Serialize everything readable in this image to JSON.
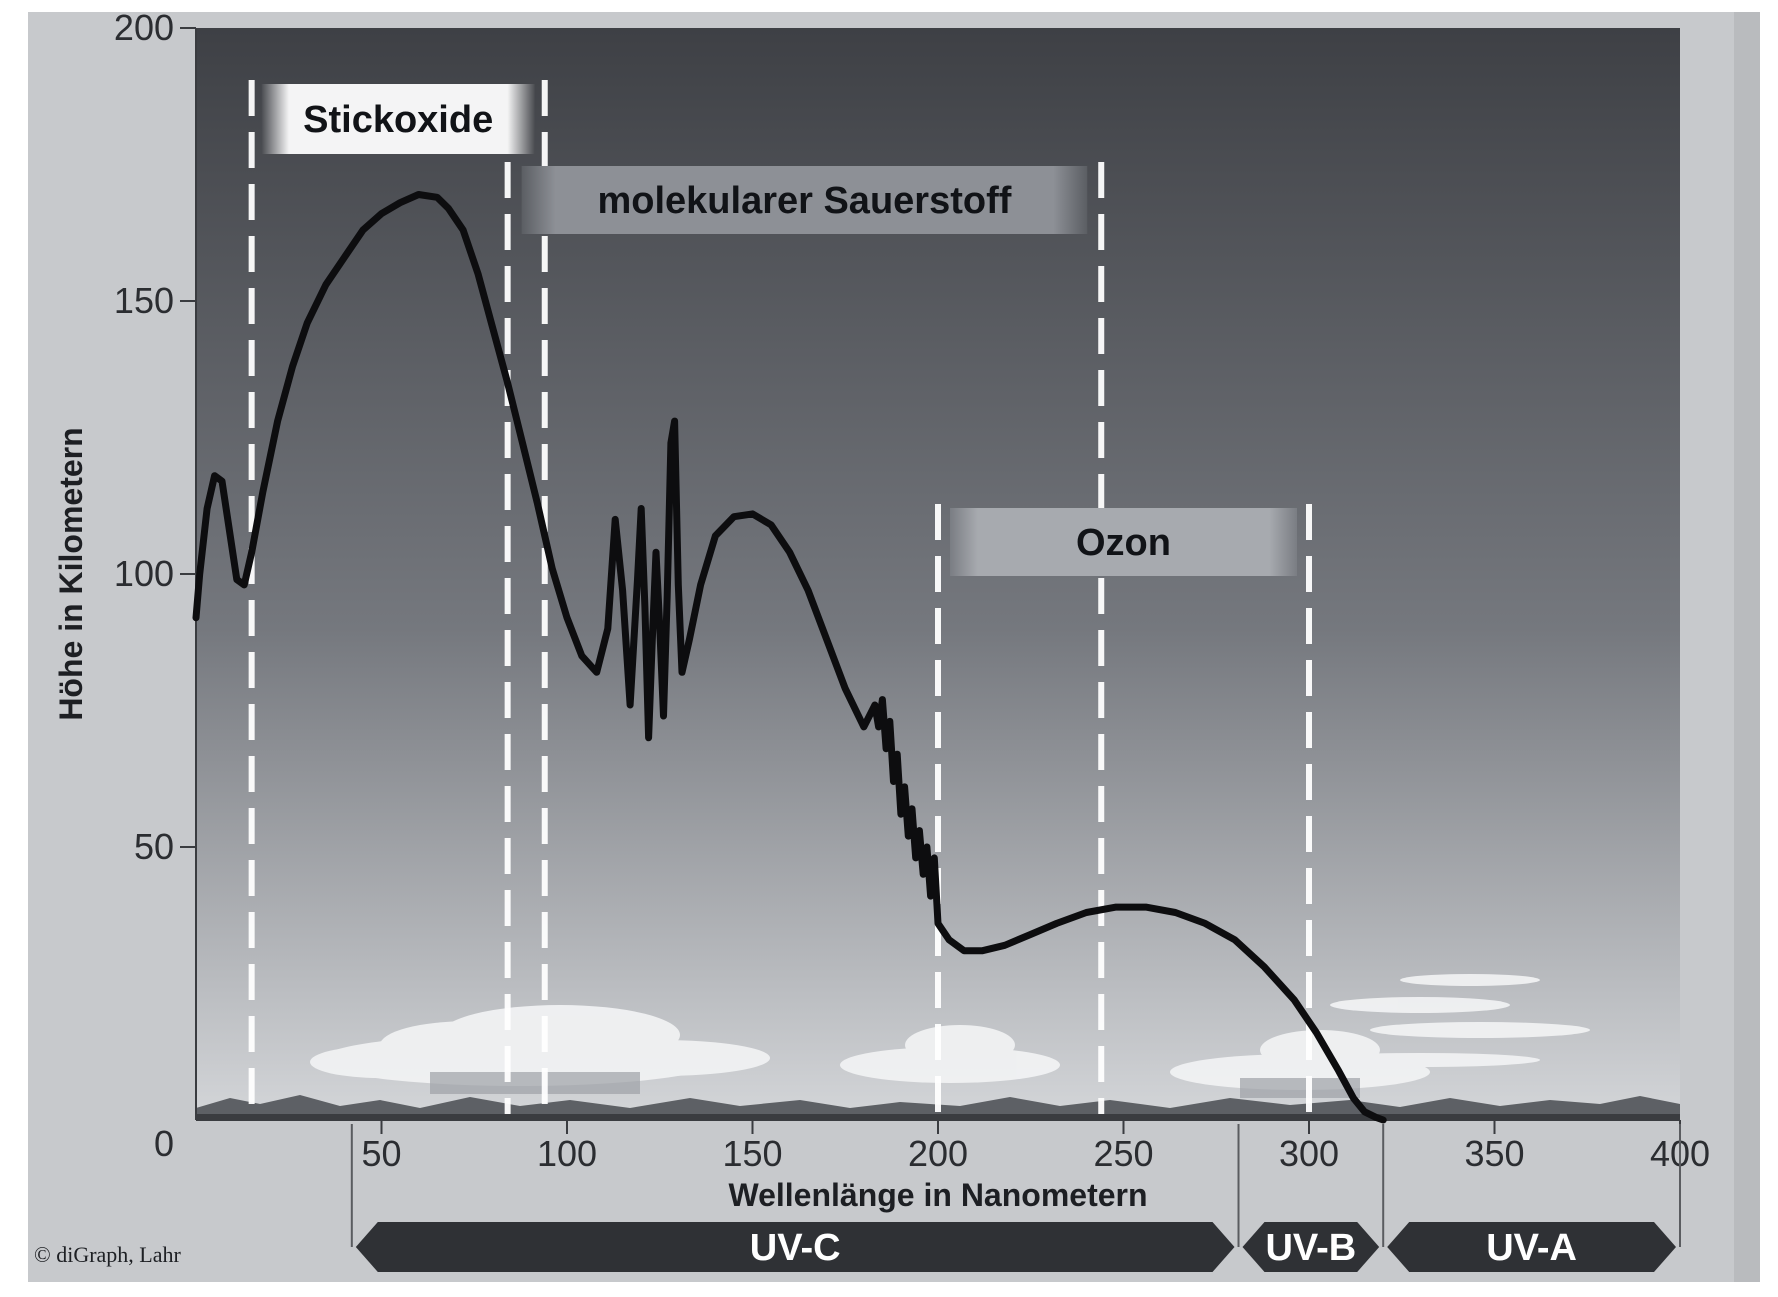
{
  "chart_data": {
    "type": "line",
    "title": "",
    "xlabel": "Wellenlänge in Nanometern",
    "ylabel": "Höhe in Kilometern",
    "xlim": [
      0,
      400
    ],
    "ylim": [
      0,
      200
    ],
    "x_ticks": [
      "50",
      "100",
      "150",
      "200",
      "250",
      "300",
      "350",
      "400"
    ],
    "y_ticks": [
      "0",
      "50",
      "100",
      "150",
      "200"
    ],
    "grid": false,
    "legend": "none",
    "series": [
      {
        "x": [
          0,
          1,
          3,
          5,
          7,
          9,
          11,
          13,
          15,
          18,
          22,
          26,
          30,
          35,
          40,
          45,
          50,
          55,
          60,
          65,
          68,
          72,
          76,
          80,
          84,
          88,
          92,
          96,
          100,
          104,
          108,
          111,
          113,
          115,
          117,
          119,
          120,
          121,
          122,
          123,
          124,
          125,
          126,
          127,
          128,
          129,
          130,
          131,
          133,
          136,
          140,
          145,
          150,
          155,
          160,
          165,
          170,
          175,
          180,
          183,
          184,
          185,
          186,
          187,
          188,
          189,
          190,
          191,
          192,
          193,
          194,
          195,
          196,
          197,
          198,
          199,
          200,
          203,
          207,
          212,
          218,
          225,
          232,
          240,
          248,
          256,
          264,
          272,
          280,
          288,
          296,
          302,
          308,
          312,
          315,
          318,
          320
        ],
        "y": [
          92,
          100,
          112,
          118,
          117,
          108,
          99,
          98,
          104,
          115,
          128,
          138,
          146,
          153,
          158,
          163,
          166,
          168,
          169.5,
          169,
          167,
          163,
          155,
          145,
          135,
          124,
          113,
          101,
          92,
          85,
          82,
          90,
          110,
          97,
          76,
          99,
          112,
          94,
          70,
          88,
          104,
          90,
          74,
          96,
          124,
          128,
          98,
          82,
          88,
          98,
          107,
          110.5,
          111,
          109,
          104,
          97,
          88,
          79,
          72,
          76,
          72,
          77,
          68,
          73,
          62,
          67,
          56,
          61,
          52,
          57,
          48,
          53,
          45,
          50,
          41,
          48,
          36,
          33,
          31,
          31,
          32,
          34,
          36,
          38,
          39,
          39,
          38,
          36,
          33,
          28,
          22,
          16,
          9,
          4,
          1.5,
          0.5,
          0
        ]
      }
    ],
    "regions": [
      {
        "label": "Stickoxide",
        "x_start": 15,
        "x_end": 94
      },
      {
        "label": "molekularer Sauerstoff",
        "x_start": 84,
        "x_end": 244
      },
      {
        "label": "Ozon",
        "x_start": 200,
        "x_end": 300
      }
    ],
    "uv_bands": [
      {
        "label": "UV-C",
        "x_start": 42,
        "x_end": 281
      },
      {
        "label": "UV-B",
        "x_start": 281,
        "x_end": 320
      },
      {
        "label": "UV-A",
        "x_start": 320,
        "x_end": 400
      }
    ],
    "credit": "© diGraph, Lahr"
  },
  "colors": {
    "sky_top": "#3e4045",
    "sky_mid": "#75787e",
    "sky_bottom": "#d4d6d9",
    "frame": "#c7c9cc",
    "curve": "#0d0d0f",
    "band_fill": "#2f3135"
  }
}
